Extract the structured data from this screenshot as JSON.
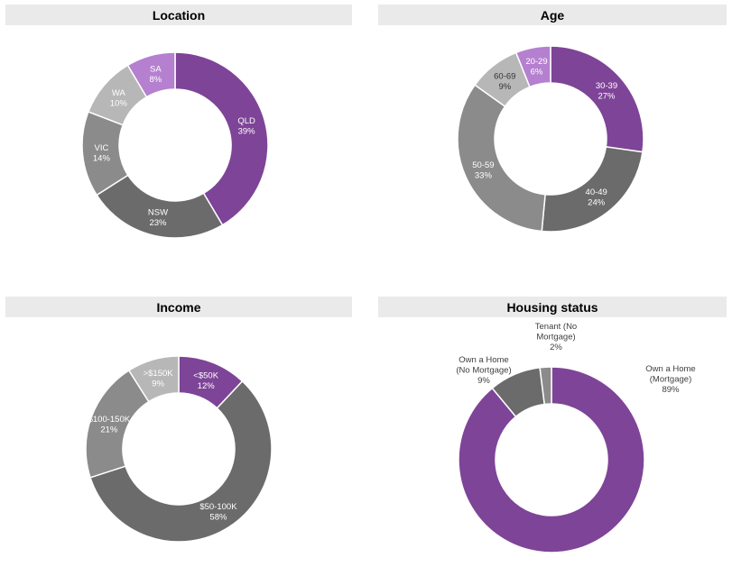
{
  "chart_data": [
    {
      "type": "pie",
      "title": "Location",
      "categories": [
        "QLD",
        "NSW",
        "VIC",
        "WA",
        "SA"
      ],
      "values": [
        39,
        23,
        14,
        10,
        8
      ],
      "value_labels": [
        "39%",
        "23%",
        "14%",
        "10%",
        "8%"
      ],
      "colors": [
        "#7e4497",
        "#6b6b6b",
        "#8b8b8b",
        "#b7b7b7",
        "#b580cf"
      ],
      "label_colors": [
        "#ffffff",
        "#ffffff",
        "#ffffff",
        "#ffffff",
        "#ffffff"
      ]
    },
    {
      "type": "pie",
      "title": "Age",
      "categories": [
        "30-39",
        "40-49",
        "50-59",
        "60-69",
        "20-29"
      ],
      "values": [
        27,
        24,
        33,
        9,
        6
      ],
      "value_labels": [
        "27%",
        "24%",
        "33%",
        "9%",
        "6%"
      ],
      "colors": [
        "#7e4497",
        "#6b6b6b",
        "#8b8b8b",
        "#b7b7b7",
        "#b580cf"
      ],
      "label_colors": [
        "#ffffff",
        "#ffffff",
        "#ffffff",
        "#333333",
        "#ffffff"
      ]
    },
    {
      "type": "pie",
      "title": "Income",
      "categories": [
        "<$50K",
        "$50-100K",
        "$100-150K",
        ">$150K"
      ],
      "values": [
        12,
        58,
        21,
        9
      ],
      "value_labels": [
        "12%",
        "58%",
        "21%",
        "9%"
      ],
      "colors": [
        "#7e4497",
        "#6b6b6b",
        "#8b8b8b",
        "#b7b7b7"
      ],
      "label_colors": [
        "#ffffff",
        "#ffffff",
        "#ffffff",
        "#ffffff"
      ]
    },
    {
      "type": "pie",
      "title": "Housing status",
      "categories": [
        "Own a Home (Mortgage)",
        "Own a Home (No Mortgage)",
        "Tenant (No Mortgage)"
      ],
      "label_lines": [
        [
          "Own a Home",
          "(Mortgage)"
        ],
        [
          "Own a Home",
          "(No Mortgage)"
        ],
        [
          "Tenant (No",
          "Mortgage)"
        ]
      ],
      "values": [
        89,
        9,
        2
      ],
      "value_labels": [
        "89%",
        "9%",
        "2%"
      ],
      "colors": [
        "#7e4497",
        "#6b6b6b",
        "#8b8b8b"
      ],
      "label_colors": [
        "#404040",
        "#404040",
        "#404040"
      ]
    }
  ]
}
